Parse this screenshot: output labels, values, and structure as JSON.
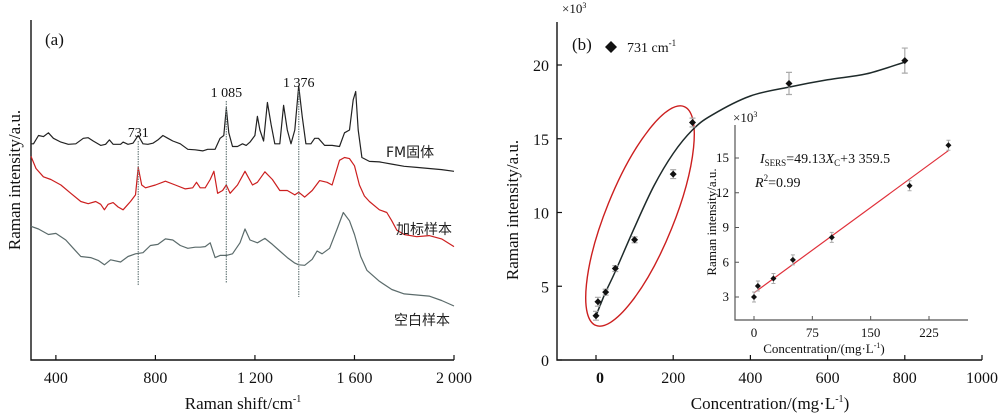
{
  "chart_data": [
    {
      "type": "line",
      "panel_label": "(a)",
      "title": "",
      "xlabel": "Raman shift/cm",
      "xlabel_sup": "-1",
      "ylabel": "Raman intensity/a.u.",
      "xlim": [
        300,
        2000
      ],
      "xticks": [
        400,
        800,
        1200,
        1600,
        2000
      ],
      "xtick_labels": [
        "400",
        "800",
        "1 200",
        "1 600",
        "2 000"
      ],
      "yticks": [],
      "grid": false,
      "series": [
        {
          "name": "FM固体",
          "color": "#222222",
          "points": [
            [
              300,
              225
            ],
            [
              310,
              225
            ],
            [
              330,
              210
            ],
            [
              350,
              212
            ],
            [
              370,
              205
            ],
            [
              390,
              215
            ],
            [
              420,
              222
            ],
            [
              450,
              226
            ],
            [
              480,
              225
            ],
            [
              510,
              215
            ],
            [
              530,
              214
            ],
            [
              550,
              220
            ],
            [
              580,
              228
            ],
            [
              600,
              226
            ],
            [
              615,
              218
            ],
            [
              630,
              226
            ],
            [
              660,
              226
            ],
            [
              670,
              222
            ],
            [
              690,
              226
            ],
            [
              710,
              224
            ],
            [
              731,
              210
            ],
            [
              750,
              225
            ],
            [
              770,
              226
            ],
            [
              790,
              224
            ],
            [
              810,
              218
            ],
            [
              830,
              210
            ],
            [
              850,
              215
            ],
            [
              870,
              220
            ],
            [
              900,
              225
            ],
            [
              930,
              235
            ],
            [
              960,
              236
            ],
            [
              990,
              238
            ],
            [
              1010,
              235
            ],
            [
              1040,
              235
            ],
            [
              1060,
              215
            ],
            [
              1075,
              210
            ],
            [
              1085,
              160
            ],
            [
              1095,
              205
            ],
            [
              1110,
              230
            ],
            [
              1130,
              230
            ],
            [
              1150,
              225
            ],
            [
              1165,
              228
            ],
            [
              1180,
              222
            ],
            [
              1200,
              210
            ],
            [
              1210,
              175
            ],
            [
              1220,
              200
            ],
            [
              1235,
              220
            ],
            [
              1250,
              150
            ],
            [
              1265,
              190
            ],
            [
              1280,
              225
            ],
            [
              1300,
              225
            ],
            [
              1315,
              155
            ],
            [
              1330,
              200
            ],
            [
              1345,
              225
            ],
            [
              1360,
              200
            ],
            [
              1376,
              120
            ],
            [
              1390,
              175
            ],
            [
              1405,
              225
            ],
            [
              1425,
              225
            ],
            [
              1440,
              215
            ],
            [
              1455,
              215
            ],
            [
              1480,
              228
            ],
            [
              1510,
              228
            ],
            [
              1540,
              230
            ],
            [
              1560,
              205
            ],
            [
              1580,
              200
            ],
            [
              1595,
              145
            ],
            [
              1605,
              130
            ],
            [
              1615,
              200
            ],
            [
              1630,
              250
            ],
            [
              1660,
              257
            ],
            [
              1700,
              258
            ],
            [
              1750,
              262
            ],
            [
              1800,
              266
            ],
            [
              1850,
              268
            ],
            [
              1900,
              270
            ],
            [
              1950,
              272
            ],
            [
              2000,
              275
            ]
          ]
        },
        {
          "name": "加标样本",
          "color": "#cc1f1f",
          "points": [
            [
              300,
              248
            ],
            [
              320,
              270
            ],
            [
              350,
              285
            ],
            [
              380,
              290
            ],
            [
              420,
              300
            ],
            [
              460,
              315
            ],
            [
              500,
              330
            ],
            [
              530,
              334
            ],
            [
              560,
              330
            ],
            [
              580,
              335
            ],
            [
              595,
              345
            ],
            [
              610,
              335
            ],
            [
              630,
              332
            ],
            [
              650,
              340
            ],
            [
              670,
              345
            ],
            [
              700,
              330
            ],
            [
              720,
              318
            ],
            [
              731,
              268
            ],
            [
              745,
              300
            ],
            [
              760,
              305
            ],
            [
              800,
              300
            ],
            [
              840,
              293
            ],
            [
              880,
              300
            ],
            [
              920,
              307
            ],
            [
              950,
              305
            ],
            [
              965,
              295
            ],
            [
              980,
              305
            ],
            [
              1000,
              305
            ],
            [
              1020,
              290
            ],
            [
              1035,
              275
            ],
            [
              1050,
              315
            ],
            [
              1070,
              310
            ],
            [
              1085,
              300
            ],
            [
              1100,
              315
            ],
            [
              1130,
              300
            ],
            [
              1160,
              275
            ],
            [
              1190,
              300
            ],
            [
              1210,
              295
            ],
            [
              1240,
              276
            ],
            [
              1270,
              290
            ],
            [
              1300,
              310
            ],
            [
              1330,
              310
            ],
            [
              1360,
              318
            ],
            [
              1376,
              313
            ],
            [
              1400,
              322
            ],
            [
              1430,
              310
            ],
            [
              1460,
              292
            ],
            [
              1490,
              295
            ],
            [
              1510,
              300
            ],
            [
              1540,
              255
            ],
            [
              1560,
              250
            ],
            [
              1580,
              252
            ],
            [
              1600,
              265
            ],
            [
              1620,
              300
            ],
            [
              1640,
              320
            ],
            [
              1660,
              330
            ],
            [
              1700,
              345
            ],
            [
              1730,
              350
            ],
            [
              1750,
              365
            ],
            [
              1770,
              382
            ],
            [
              1800,
              390
            ],
            [
              1850,
              394
            ],
            [
              1900,
              392
            ],
            [
              1950,
              398
            ],
            [
              2000,
              412
            ]
          ]
        },
        {
          "name": "空白样本",
          "color": "#5b6b6b",
          "points": [
            [
              300,
              375
            ],
            [
              330,
              380
            ],
            [
              370,
              390
            ],
            [
              400,
              388
            ],
            [
              440,
              400
            ],
            [
              470,
              415
            ],
            [
              500,
              430
            ],
            [
              540,
              432
            ],
            [
              570,
              437
            ],
            [
              595,
              445
            ],
            [
              620,
              436
            ],
            [
              660,
              440
            ],
            [
              690,
              430
            ],
            [
              720,
              425
            ],
            [
              750,
              423
            ],
            [
              780,
              410
            ],
            [
              810,
              408
            ],
            [
              840,
              398
            ],
            [
              870,
              400
            ],
            [
              900,
              410
            ],
            [
              930,
              415
            ],
            [
              960,
              413
            ],
            [
              980,
              413
            ],
            [
              1000,
              412
            ],
            [
              1020,
              405
            ],
            [
              1040,
              432
            ],
            [
              1060,
              428
            ],
            [
              1085,
              428
            ],
            [
              1110,
              425
            ],
            [
              1140,
              405
            ],
            [
              1160,
              380
            ],
            [
              1180,
              400
            ],
            [
              1210,
              405
            ],
            [
              1240,
              397
            ],
            [
              1270,
              408
            ],
            [
              1300,
              420
            ],
            [
              1330,
              432
            ],
            [
              1360,
              442
            ],
            [
              1376,
              445
            ],
            [
              1400,
              446
            ],
            [
              1430,
              435
            ],
            [
              1450,
              420
            ],
            [
              1470,
              425
            ],
            [
              1500,
              415
            ],
            [
              1530,
              380
            ],
            [
              1555,
              350
            ],
            [
              1580,
              365
            ],
            [
              1600,
              390
            ],
            [
              1625,
              430
            ],
            [
              1650,
              455
            ],
            [
              1700,
              475
            ],
            [
              1750,
              490
            ],
            [
              1800,
              498
            ],
            [
              1850,
              500
            ],
            [
              1900,
              502
            ],
            [
              1950,
              510
            ],
            [
              2000,
              520
            ]
          ]
        }
      ],
      "series_labels": [
        "FM固体",
        "加标样本",
        "空白样本"
      ],
      "annotations": [
        {
          "text": "731",
          "x": 731
        },
        {
          "text": "1 085",
          "x": 1085
        },
        {
          "text": "1 376",
          "x": 1376
        }
      ]
    },
    {
      "type": "scatter",
      "panel_label": "(b)",
      "title": "",
      "legend": {
        "marker": "diamond",
        "text": "731 cm",
        "text_sup": "-1",
        "placement": "top-left"
      },
      "xlabel": "Concentration/(mg·L",
      "xlabel_sup": "-1",
      "xlabel_end": ")",
      "ylabel": "Raman intensity/a.u.",
      "y_multiplier": "×10",
      "y_multiplier_sup": "3",
      "xlim": [
        -100,
        1000
      ],
      "ylim": [
        0,
        23
      ],
      "xticks": [
        0,
        200,
        400,
        600,
        800,
        1000
      ],
      "xtick_labels": [
        "0",
        "200",
        "400",
        "600",
        "800",
        "1000"
      ],
      "yticks": [
        0,
        5,
        10,
        15,
        20
      ],
      "ytick_labels": [
        "0",
        "5",
        "10",
        "15",
        "20"
      ],
      "grid": false,
      "points": [
        {
          "x": 0,
          "y": 3.0,
          "err": 0.3
        },
        {
          "x": 5,
          "y": 3.95,
          "err": 0.3
        },
        {
          "x": 25,
          "y": 4.6,
          "err": 0.2
        },
        {
          "x": 50,
          "y": 6.2,
          "err": 0.2
        },
        {
          "x": 100,
          "y": 8.15,
          "err": 0.2
        },
        {
          "x": 200,
          "y": 12.6,
          "err": 0.3
        },
        {
          "x": 250,
          "y": 16.1,
          "err": 0.3
        },
        {
          "x": 500,
          "y": 18.75,
          "err": 0.75
        },
        {
          "x": 800,
          "y": 20.3,
          "err": 0.85
        }
      ],
      "fit_curve": [
        [
          0,
          3.0
        ],
        [
          25,
          4.6
        ],
        [
          50,
          6.0
        ],
        [
          100,
          9.0
        ],
        [
          150,
          11.8
        ],
        [
          200,
          14.0
        ],
        [
          250,
          15.6
        ],
        [
          300,
          16.6
        ],
        [
          400,
          17.9
        ],
        [
          500,
          18.5
        ],
        [
          600,
          19.0
        ],
        [
          700,
          19.4
        ],
        [
          800,
          20.2
        ]
      ],
      "fit_color": "#1e2a2a",
      "highlight_ellipse_color": "#cc1f1f",
      "inset": {
        "type": "scatter",
        "xlabel": "Concentration/(mg·L",
        "xlabel_sup": "-1",
        "xlabel_end": ")",
        "ylabel": "Raman intensity/a.u.",
        "y_multiplier": "×10",
        "y_multiplier_sup": "3",
        "xlim": [
          -25,
          275
        ],
        "ylim": [
          0.6,
          17.5
        ],
        "xticks": [
          0,
          75,
          150,
          225
        ],
        "xtick_labels": [
          "0",
          "75",
          "150",
          "225"
        ],
        "yticks": [
          3,
          6,
          9,
          12,
          15
        ],
        "ytick_labels": [
          "3",
          "6",
          "9",
          "12",
          "15"
        ],
        "points": [
          {
            "x": 0,
            "y": 3.0
          },
          {
            "x": 5,
            "y": 3.95
          },
          {
            "x": 25,
            "y": 4.6
          },
          {
            "x": 50,
            "y": 6.2
          },
          {
            "x": 100,
            "y": 8.15
          },
          {
            "x": 200,
            "y": 12.6
          },
          {
            "x": 250,
            "y": 16.1
          }
        ],
        "fit": {
          "slope": 0.04913,
          "intercept": 3.3595,
          "x_range": [
            0,
            250
          ],
          "color": "#e0303a"
        },
        "equation": {
          "I": "I",
          "sub": "SERS",
          "rest": "=49.13",
          "X": "X",
          "Xsub": "C",
          "tail": "+3 359.5"
        },
        "r2": {
          "R": "R",
          "sup": "2",
          "tail": "=0.99"
        }
      }
    }
  ]
}
